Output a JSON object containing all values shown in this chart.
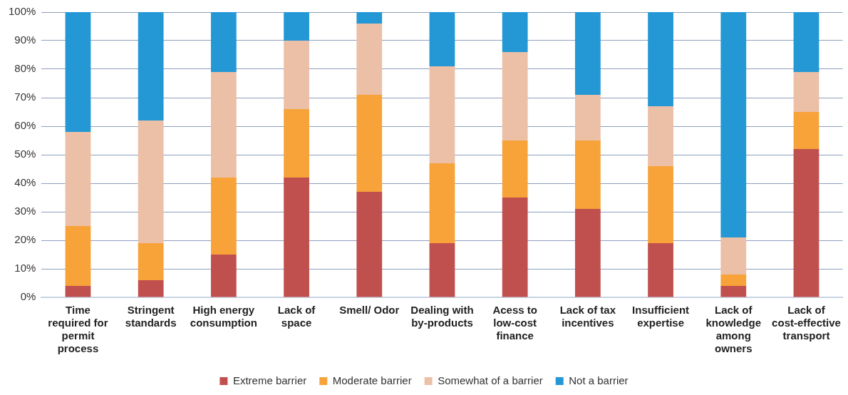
{
  "chart_data": {
    "type": "bar",
    "stacked": true,
    "categories": [
      "Time required for permit process",
      "Stringent standards",
      "High energy consumption",
      "Lack of space",
      "Smell/ Odor",
      "Dealing with by-products",
      "Acess to low-cost finance",
      "Lack of tax incentives",
      "Insufficient expertise",
      "Lack of knowledge among owners",
      "Lack of cost-effective transport"
    ],
    "series": [
      {
        "name": "Extreme barrier",
        "color": "#c0504d",
        "values": [
          4,
          6,
          15,
          42,
          37,
          19,
          35,
          31,
          19,
          4,
          52
        ]
      },
      {
        "name": "Moderate barrier",
        "color": "#f7a33a",
        "values": [
          21,
          13,
          27,
          24,
          34,
          28,
          20,
          24,
          27,
          4,
          13
        ]
      },
      {
        "name": "Somewhat of a barrier",
        "color": "#ecbfa7",
        "values": [
          33,
          43,
          37,
          24,
          25,
          34,
          31,
          16,
          21,
          13,
          14
        ]
      },
      {
        "name": "Not a barrier",
        "color": "#2398d5",
        "values": [
          42,
          38,
          21,
          10,
          4,
          19,
          14,
          29,
          33,
          79,
          21
        ]
      }
    ],
    "ylim": [
      0,
      100
    ],
    "yticks": [
      {
        "value": 0,
        "label": "0%"
      },
      {
        "value": 10,
        "label": "10%"
      },
      {
        "value": 20,
        "label": "20%"
      },
      {
        "value": 30,
        "label": "30%"
      },
      {
        "value": 40,
        "label": "40%"
      },
      {
        "value": 50,
        "label": "50%"
      },
      {
        "value": 60,
        "label": "60%"
      },
      {
        "value": 70,
        "label": "70%"
      },
      {
        "value": 80,
        "label": "80%"
      },
      {
        "value": 90,
        "label": "90%"
      },
      {
        "value": 100,
        "label": "100%"
      }
    ],
    "grid": "y",
    "legend": "bottom"
  }
}
